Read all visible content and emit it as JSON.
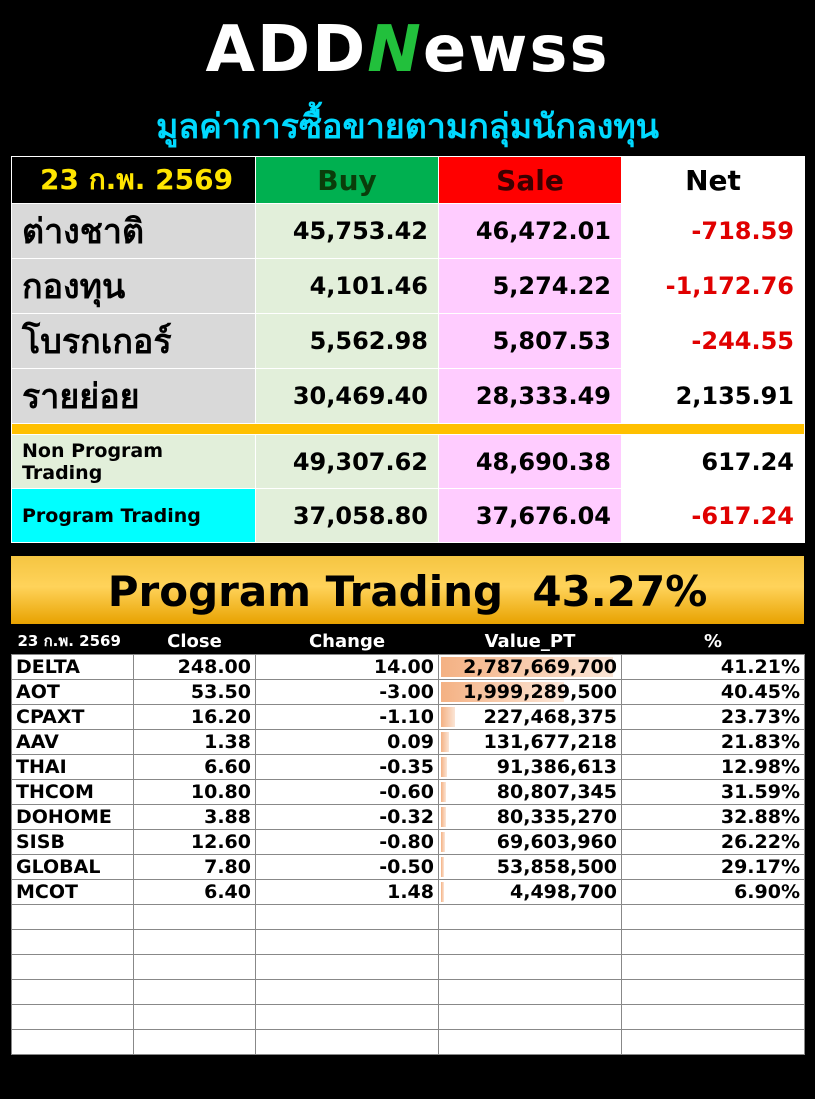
{
  "logo": {
    "prefix": "ADD",
    "mark": "N",
    "suffix": "ewss"
  },
  "subtitle": "มูลค่าการซื้อขายตามกลุ่มนักลงทุน",
  "summary": {
    "date": "23 ก.พ. 2569",
    "headers": {
      "buy": "Buy",
      "sale": "Sale",
      "net": "Net"
    },
    "groups": [
      {
        "label": "ต่างชาติ",
        "buy": "45,753.42",
        "sale": "46,472.01",
        "net": "-718.59",
        "negative": true
      },
      {
        "label": "กองทุน",
        "buy": "4,101.46",
        "sale": "5,274.22",
        "net": "-1,172.76",
        "negative": true
      },
      {
        "label": "โบรกเกอร์",
        "buy": "5,562.98",
        "sale": "5,807.53",
        "net": "-244.55",
        "negative": true
      },
      {
        "label": "รายย่อย",
        "buy": "30,469.40",
        "sale": "28,333.49",
        "net": "2,135.91",
        "negative": false
      }
    ],
    "program": [
      {
        "label": "Non Program Trading",
        "buy": "49,307.62",
        "sale": "48,690.38",
        "net": "617.24",
        "negative": false
      },
      {
        "label": "Program Trading",
        "buy": "37,058.80",
        "sale": "37,676.04",
        "net": "-617.24",
        "negative": true
      }
    ]
  },
  "banner": {
    "label": "Program Trading",
    "value": "43.27%"
  },
  "stocks": {
    "columns": {
      "date": "23 ก.พ. 2569",
      "close": "Close",
      "change": "Change",
      "value": "Value_PT",
      "pct": "%"
    },
    "rows": [
      {
        "symbol": "DELTA",
        "close": "248.00",
        "change": "14.00",
        "direction": "up",
        "value": "2,787,669,700",
        "bar": 1.0,
        "pct": "41.21%"
      },
      {
        "symbol": "AOT",
        "close": "53.50",
        "change": "-3.00",
        "direction": "down",
        "value": "1,999,289,500",
        "bar": 0.717,
        "pct": "40.45%"
      },
      {
        "symbol": "CPAXT",
        "close": "16.20",
        "change": "-1.10",
        "direction": "down",
        "value": "227,468,375",
        "bar": 0.082,
        "pct": "23.73%"
      },
      {
        "symbol": "AAV",
        "close": "1.38",
        "change": "0.09",
        "direction": "up",
        "value": "131,677,218",
        "bar": 0.047,
        "pct": "21.83%"
      },
      {
        "symbol": "THAI",
        "close": "6.60",
        "change": "-0.35",
        "direction": "down",
        "value": "91,386,613",
        "bar": 0.033,
        "pct": "12.98%"
      },
      {
        "symbol": "THCOM",
        "close": "10.80",
        "change": "-0.60",
        "direction": "down",
        "value": "80,807,345",
        "bar": 0.029,
        "pct": "31.59%"
      },
      {
        "symbol": "DOHOME",
        "close": "3.88",
        "change": "-0.32",
        "direction": "down",
        "value": "80,335,270",
        "bar": 0.029,
        "pct": "32.88%"
      },
      {
        "symbol": "SISB",
        "close": "12.60",
        "change": "-0.80",
        "direction": "down",
        "value": "69,603,960",
        "bar": 0.025,
        "pct": "26.22%"
      },
      {
        "symbol": "GLOBAL",
        "close": "7.80",
        "change": "-0.50",
        "direction": "down",
        "value": "53,858,500",
        "bar": 0.019,
        "pct": "29.17%"
      },
      {
        "symbol": "MCOT",
        "close": "6.40",
        "change": "1.48",
        "direction": "up",
        "value": "4,498,700",
        "bar": 0.0016,
        "pct": "6.90%"
      }
    ]
  }
}
